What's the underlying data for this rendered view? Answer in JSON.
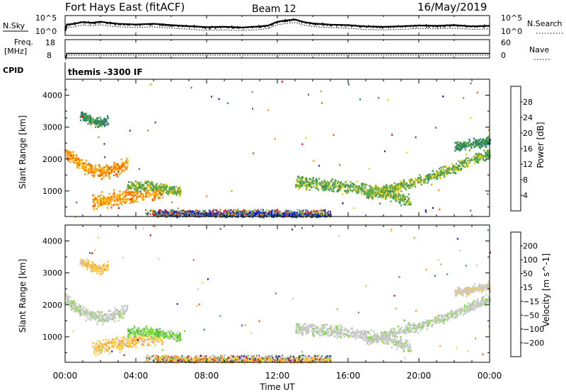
{
  "header": {
    "title": "Fort Hays East (fitACF)",
    "beam": "Beam 12",
    "date": "16/May/2019"
  },
  "chart_data": [
    {
      "type": "line",
      "panel": "noise",
      "left_label": "N.Sky",
      "right_label": "N.Search",
      "left_ticks": [
        "10^5",
        "10^0"
      ],
      "right_ticks": [
        "10^5",
        "10^0"
      ],
      "x": [
        0,
        0.1,
        0.5,
        1,
        1.5,
        2,
        2.5,
        3,
        4,
        5,
        6,
        7,
        8,
        9,
        10,
        11,
        11.5,
        12,
        12.5,
        13,
        13.5,
        14,
        15,
        16,
        17,
        18,
        19,
        20,
        21,
        22,
        23,
        24
      ],
      "values": [
        0.2,
        0.55,
        0.6,
        0.7,
        0.66,
        0.72,
        0.65,
        0.6,
        0.56,
        0.6,
        0.52,
        0.46,
        0.4,
        0.42,
        0.38,
        0.44,
        0.5,
        0.72,
        0.8,
        0.85,
        0.7,
        0.62,
        0.55,
        0.52,
        0.44,
        0.42,
        0.45,
        0.5,
        0.48,
        0.52,
        0.45,
        0.48
      ]
    },
    {
      "type": "line",
      "panel": "frequency",
      "left_label": "Freq.",
      "left_unit": "[MHz]",
      "right_label": "Nave",
      "left_ticks": [
        "18",
        "8"
      ],
      "right_ticks": [
        "60",
        "0"
      ],
      "x": [
        0,
        0.05,
        0.1,
        24
      ],
      "values": [
        8,
        8,
        10.5,
        10.5
      ]
    },
    {
      "type": "text",
      "panel": "cpid",
      "label": "CPID",
      "program": "themis -3300 IF"
    },
    {
      "type": "heatmap",
      "panel": "power",
      "ylabel": "Slant Range [km]",
      "yticks": [
        1000,
        2000,
        3000,
        4000
      ],
      "ylim": [
        200,
        4500
      ],
      "colorbar_label": "Power [dB]",
      "colorbar_ticks": [
        "28",
        "24",
        "20",
        "16",
        "12",
        "8",
        "4"
      ],
      "colors": [
        "#0000ee",
        "#2244aa",
        "#3a7a8a",
        "#2e8b57",
        "#66aa44",
        "#ffcc00",
        "#ff9900",
        "#ff5500",
        "#ee0000"
      ],
      "bands": [
        {
          "t": [
            0,
            0.5,
            1,
            1.5,
            2,
            2.5,
            3,
            3.5
          ],
          "r": [
            2200,
            2000,
            1800,
            1700,
            1600,
            1650,
            1750,
            1900
          ],
          "w": 280,
          "v": 6
        },
        {
          "t": [
            0.8,
            1.2,
            1.6,
            2.0,
            2.4
          ],
          "r": [
            3400,
            3300,
            3200,
            3150,
            3250
          ],
          "w": 200,
          "v": 3
        },
        {
          "t": [
            1.5,
            2,
            2.5,
            3,
            3.5,
            4,
            4.5,
            5,
            5.5
          ],
          "r": [
            700,
            720,
            760,
            800,
            850,
            900,
            950,
            980,
            1000
          ],
          "w": 300,
          "v": 6
        },
        {
          "t": [
            3.5,
            4,
            4.5,
            5,
            5.5,
            6,
            6.5
          ],
          "r": [
            1150,
            1180,
            1200,
            1150,
            1100,
            1050,
            1000
          ],
          "w": 200,
          "v": 4
        },
        {
          "t": [
            13,
            14,
            15,
            16,
            17,
            18,
            19,
            19.5
          ],
          "r": [
            1300,
            1250,
            1200,
            1150,
            1050,
            950,
            800,
            700
          ],
          "w": 260,
          "v": 4
        },
        {
          "t": [
            17,
            18,
            19,
            20,
            21,
            22,
            23,
            24
          ],
          "r": [
            900,
            1050,
            1200,
            1350,
            1550,
            1750,
            2000,
            2200
          ],
          "w": 220,
          "v": 4
        },
        {
          "t": [
            22,
            22.5,
            23,
            23.5,
            24
          ],
          "r": [
            2400,
            2450,
            2500,
            2550,
            2600
          ],
          "w": 200,
          "v": 3
        },
        {
          "t": [
            5,
            7,
            9,
            11,
            13,
            15
          ],
          "r": [
            320,
            300,
            280,
            300,
            280,
            300
          ],
          "w": 130,
          "v": 1
        }
      ]
    },
    {
      "type": "heatmap",
      "panel": "velocity",
      "xlabel": "Time UT",
      "xticks": [
        "00:00",
        "04:00",
        "08:00",
        "12:00",
        "16:00",
        "20:00",
        "00:00"
      ],
      "ylabel": "Slant Range [km]",
      "yticks": [
        1000,
        2000,
        3000,
        4000
      ],
      "ylim": [
        200,
        4500
      ],
      "colorbar_label": "Velocity [m s^-1]",
      "colorbar_ticks": [
        "200",
        "100",
        "50",
        "15",
        "−15",
        "−50",
        "−100",
        "−200"
      ],
      "colors": [
        "#2222cc",
        "#227799",
        "#44aa55",
        "#77dd33",
        "#c8c8c8",
        "#c8c8c8",
        "#ffcc44",
        "#ff9933",
        "#ff5522",
        "#ee0000"
      ],
      "bands": [
        {
          "t": [
            0,
            0.5,
            1,
            1.5,
            2,
            2.5,
            3,
            3.5
          ],
          "r": [
            2200,
            2000,
            1800,
            1700,
            1600,
            1650,
            1750,
            1900
          ],
          "w": 280,
          "v": 4
        },
        {
          "t": [
            0.8,
            1.2,
            1.6,
            2.0,
            2.4
          ],
          "r": [
            3400,
            3300,
            3200,
            3150,
            3250
          ],
          "w": 200,
          "v": 6
        },
        {
          "t": [
            1.5,
            2,
            2.5,
            3,
            3.5,
            4,
            4.5,
            5,
            5.5
          ],
          "r": [
            700,
            720,
            760,
            800,
            850,
            900,
            950,
            980,
            1000
          ],
          "w": 300,
          "v": 6
        },
        {
          "t": [
            3.5,
            4,
            4.5,
            5,
            5.5,
            6,
            6.5
          ],
          "r": [
            1150,
            1180,
            1200,
            1150,
            1100,
            1050,
            1000
          ],
          "w": 200,
          "v": 3
        },
        {
          "t": [
            13,
            14,
            15,
            16,
            17,
            18,
            19,
            19.5
          ],
          "r": [
            1300,
            1250,
            1200,
            1150,
            1050,
            950,
            800,
            700
          ],
          "w": 260,
          "v": 4
        },
        {
          "t": [
            17,
            18,
            19,
            20,
            21,
            22,
            23,
            24
          ],
          "r": [
            900,
            1050,
            1200,
            1350,
            1550,
            1750,
            2000,
            2200
          ],
          "w": 220,
          "v": 4
        },
        {
          "t": [
            22,
            22.5,
            23,
            23.5,
            24
          ],
          "r": [
            2400,
            2450,
            2500,
            2550,
            2600
          ],
          "w": 200,
          "v": 5
        },
        {
          "t": [
            5,
            7,
            9,
            11,
            13,
            15
          ],
          "r": [
            320,
            300,
            280,
            300,
            280,
            300
          ],
          "w": 130,
          "v": 6
        }
      ]
    }
  ]
}
